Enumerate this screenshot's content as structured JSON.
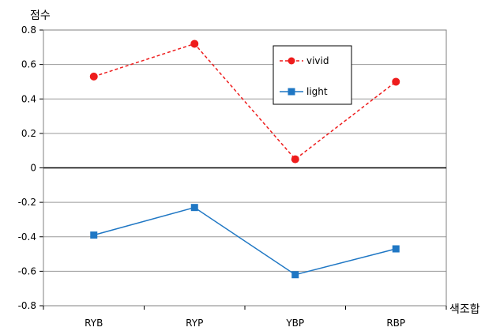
{
  "chart_data": {
    "type": "line",
    "title": "",
    "ylabel": "점수",
    "xlabel": "색조합",
    "categories": [
      "RYB",
      "RYP",
      "YBP",
      "RBP"
    ],
    "ylim": [
      -0.8,
      0.8
    ],
    "yticks": [
      0.8,
      0.6,
      0.4,
      0.2,
      0,
      -0.2,
      -0.4,
      -0.6,
      -0.8
    ],
    "ytick_labels": [
      "0.8",
      "0.6",
      "0.4",
      "0.2",
      "0",
      "-0.2",
      "-0.4",
      "-0.6",
      "-0.8"
    ],
    "grid": true,
    "legend_position": "top-right",
    "series": [
      {
        "name": "vivid",
        "values": [
          0.53,
          0.72,
          0.05,
          0.5
        ],
        "color": "#ee1c1c",
        "line_style": "dashed",
        "marker": "circle"
      },
      {
        "name": "light",
        "values": [
          -0.39,
          -0.23,
          -0.62,
          -0.47
        ],
        "color": "#1f77c4",
        "line_style": "solid",
        "marker": "square"
      }
    ]
  }
}
